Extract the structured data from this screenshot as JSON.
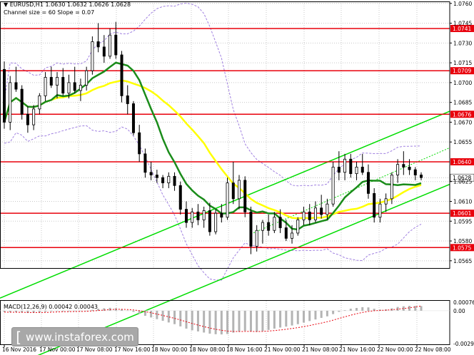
{
  "header": {
    "symbol_info": "EURUSD,H1  1.0630 1.0632 1.0626 1.0628",
    "indicator_info": "Channel size = 60 Slope = 0.07"
  },
  "macd_info": "MACD(12,26,9) 0.00042 0.00043",
  "watermark": "www.instaforex.com",
  "colors": {
    "level_line": "#e8000b",
    "level_label_bg": "#e8000b",
    "current_price_bg": "#ffffff",
    "ma_fast": "#1a8c1a",
    "ma_slow": "#ffff00",
    "channel_green": "#00dd00",
    "bollinger": "#a080e0",
    "candle_bull": "#ffffff",
    "candle_bear": "#000000",
    "macd_hist": "#b4b4b4",
    "macd_signal": "#e8000b",
    "grid": "#c8c8c8"
  },
  "chart_data": {
    "type": "candlestick",
    "symbol": "EURUSD",
    "timeframe": "H1",
    "y_ticks": [
      "1.0760",
      "1.0745",
      "1.0730",
      "1.0715",
      "1.0700",
      "1.0685",
      "1.0670",
      "1.0655",
      "1.0625",
      "1.0610",
      "1.0595",
      "1.0580",
      "1.0565"
    ],
    "ylim": [
      1.05595,
      1.07615
    ],
    "x_ticks": [
      "16 Nov 2016",
      "17 Nov 00:00",
      "17 Nov 08:00",
      "17 Nov 16:00",
      "18 Nov 00:00",
      "18 Nov 08:00",
      "18 Nov 16:00",
      "21 Nov 00:00",
      "21 Nov 08:00",
      "21 Nov 16:00",
      "22 Nov 00:00",
      "22 Nov 08:00"
    ],
    "levels": [
      {
        "value": 1.0741,
        "label": "1.0741"
      },
      {
        "value": 1.0709,
        "label": "1.0709"
      },
      {
        "value": 1.0676,
        "label": "1.0676"
      },
      {
        "value": 1.064,
        "label": "1.0640"
      },
      {
        "value": 1.0601,
        "label": "1.0601"
      },
      {
        "value": 1.0575,
        "label": "1.0575"
      }
    ],
    "current_price": {
      "value": 1.0628,
      "label": "1.0628"
    },
    "candles": [
      [
        1.071,
        1.0716,
        1.0665,
        1.067
      ],
      [
        1.067,
        1.0705,
        1.0664,
        1.07
      ],
      [
        1.07,
        1.0712,
        1.0693,
        1.0695
      ],
      [
        1.0695,
        1.0698,
        1.0672,
        1.0676
      ],
      [
        1.0676,
        1.0682,
        1.0662,
        1.0668
      ],
      [
        1.0668,
        1.0683,
        1.0664,
        1.068
      ],
      [
        1.068,
        1.0692,
        1.0676,
        1.069
      ],
      [
        1.069,
        1.0708,
        1.0686,
        1.0704
      ],
      [
        1.0704,
        1.0712,
        1.0696,
        1.0698
      ],
      [
        1.0698,
        1.0708,
        1.0688,
        1.0704
      ],
      [
        1.0704,
        1.0711,
        1.069,
        1.0692
      ],
      [
        1.0692,
        1.0706,
        1.0688,
        1.07
      ],
      [
        1.07,
        1.0712,
        1.0692,
        1.0694
      ],
      [
        1.0694,
        1.0703,
        1.0686,
        1.0698
      ],
      [
        1.0698,
        1.0712,
        1.0694,
        1.0709
      ],
      [
        1.0709,
        1.0735,
        1.0706,
        1.0731
      ],
      [
        1.0731,
        1.0745,
        1.0723,
        1.0727
      ],
      [
        1.0727,
        1.0736,
        1.0715,
        1.072
      ],
      [
        1.072,
        1.0741,
        1.0718,
        1.0736
      ],
      [
        1.0736,
        1.0746,
        1.0718,
        1.0721
      ],
      [
        1.0721,
        1.0724,
        1.0685,
        1.069
      ],
      [
        1.069,
        1.0698,
        1.0676,
        1.0684
      ],
      [
        1.0684,
        1.0686,
        1.066,
        1.0662
      ],
      [
        1.0662,
        1.0668,
        1.064,
        1.0646
      ],
      [
        1.0646,
        1.065,
        1.0628,
        1.0632
      ],
      [
        1.0632,
        1.064,
        1.0626,
        1.063
      ],
      [
        1.063,
        1.0634,
        1.0624,
        1.0628
      ],
      [
        1.0628,
        1.063,
        1.062,
        1.0624
      ],
      [
        1.0624,
        1.0632,
        1.062,
        1.0629
      ],
      [
        1.0629,
        1.0632,
        1.0618,
        1.0622
      ],
      [
        1.0622,
        1.0625,
        1.06,
        1.0604
      ],
      [
        1.0604,
        1.061,
        1.059,
        1.0594
      ],
      [
        1.0594,
        1.0605,
        1.059,
        1.0602
      ],
      [
        1.0602,
        1.0608,
        1.0592,
        1.0596
      ],
      [
        1.0596,
        1.0606,
        1.059,
        1.0603
      ],
      [
        1.0603,
        1.0609,
        1.0584,
        1.0587
      ],
      [
        1.0587,
        1.0604,
        1.0585,
        1.0601
      ],
      [
        1.0601,
        1.0608,
        1.0594,
        1.0598
      ],
      [
        1.0598,
        1.0628,
        1.0596,
        1.0624
      ],
      [
        1.0624,
        1.064,
        1.0608,
        1.0612
      ],
      [
        1.0612,
        1.063,
        1.0604,
        1.0626
      ],
      [
        1.0626,
        1.0629,
        1.0598,
        1.0602
      ],
      [
        1.0602,
        1.0606,
        1.057,
        1.0576
      ],
      [
        1.0576,
        1.0592,
        1.0572,
        1.0588
      ],
      [
        1.0588,
        1.0596,
        1.0578,
        1.0594
      ],
      [
        1.0594,
        1.06,
        1.0584,
        1.0588
      ],
      [
        1.0588,
        1.0602,
        1.0586,
        1.0598
      ],
      [
        1.0598,
        1.0604,
        1.0586,
        1.059
      ],
      [
        1.059,
        1.0596,
        1.058,
        1.0582
      ],
      [
        1.0582,
        1.0592,
        1.0578,
        1.0586
      ],
      [
        1.0586,
        1.0598,
        1.0584,
        1.0596
      ],
      [
        1.0596,
        1.0606,
        1.0592,
        1.0602
      ],
      [
        1.0602,
        1.0608,
        1.0592,
        1.0596
      ],
      [
        1.0596,
        1.061,
        1.0594,
        1.0605
      ],
      [
        1.0605,
        1.0615,
        1.0597,
        1.06
      ],
      [
        1.06,
        1.0612,
        1.0596,
        1.0608
      ],
      [
        1.0608,
        1.064,
        1.0606,
        1.0636
      ],
      [
        1.0636,
        1.0648,
        1.0626,
        1.0632
      ],
      [
        1.0632,
        1.0646,
        1.0626,
        1.0642
      ],
      [
        1.0642,
        1.0646,
        1.0628,
        1.0631
      ],
      [
        1.0631,
        1.064,
        1.0626,
        1.0636
      ],
      [
        1.0636,
        1.0646,
        1.063,
        1.0632
      ],
      [
        1.0632,
        1.0638,
        1.0612,
        1.0616
      ],
      [
        1.0616,
        1.062,
        1.0594,
        1.0598
      ],
      [
        1.0598,
        1.0612,
        1.0594,
        1.0608
      ],
      [
        1.0608,
        1.0616,
        1.0602,
        1.0612
      ],
      [
        1.0612,
        1.0632,
        1.0608,
        1.063
      ],
      [
        1.063,
        1.0642,
        1.0624,
        1.0638
      ],
      [
        1.0638,
        1.0648,
        1.063,
        1.0636
      ],
      [
        1.0636,
        1.0642,
        1.063,
        1.0634
      ],
      [
        1.0634,
        1.0636,
        1.0626,
        1.063
      ],
      [
        1.063,
        1.0632,
        1.0626,
        1.0628
      ]
    ],
    "macd": {
      "histogram": [
        -0.0001,
        -0.00014,
        -0.00012,
        -0.00016,
        -0.0002,
        -0.00018,
        -0.00015,
        -0.0001,
        -6e-05,
        -4e-05,
        -6e-05,
        -5e-05,
        -4e-05,
        -3e-05,
        0.0,
        8e-05,
        0.00018,
        0.00022,
        0.00026,
        0.00022,
        0.00012,
        2e-05,
        -0.0001,
        -0.00025,
        -0.00045,
        -0.0006,
        -0.00075,
        -0.0009,
        -0.00105,
        -0.0012,
        -0.0014,
        -0.0016,
        -0.00175,
        -0.00185,
        -0.00195,
        -0.00205,
        -0.0021,
        -0.00212,
        -0.00208,
        -0.00196,
        -0.00186,
        -0.0018,
        -0.00185,
        -0.00188,
        -0.00182,
        -0.00172,
        -0.0016,
        -0.0015,
        -0.00142,
        -0.00132,
        -0.0012,
        -0.00106,
        -0.00092,
        -0.00078,
        -0.00064,
        -0.0005,
        -0.0003,
        -0.0001,
        5e-05,
        0.00018,
        0.00025,
        0.00032,
        0.0003,
        0.00018,
        0.0001,
        0.00012,
        0.00022,
        0.00034,
        0.0004,
        0.00044,
        0.00043,
        0.00042
      ],
      "signal": [
        -0.00012,
        -0.00013,
        -0.00013,
        -0.00014,
        -0.00015,
        -0.00016,
        -0.00016,
        -0.00015,
        -0.00013,
        -0.00011,
        -9e-05,
        -8e-05,
        -7e-05,
        -6e-05,
        -5e-05,
        -2e-05,
        2e-05,
        6e-05,
        0.0001,
        0.00013,
        0.00013,
        0.00011,
        7e-05,
        1e-05,
        -8e-05,
        -0.00018,
        -0.0003,
        -0.00042,
        -0.00055,
        -0.00068,
        -0.00083,
        -0.00098,
        -0.00114,
        -0.00128,
        -0.00142,
        -0.00155,
        -0.00166,
        -0.00175,
        -0.00182,
        -0.00185,
        -0.00186,
        -0.00185,
        -0.00185,
        -0.00186,
        -0.00185,
        -0.00182,
        -0.00177,
        -0.00172,
        -0.00166,
        -0.00159,
        -0.00151,
        -0.00142,
        -0.00132,
        -0.00121,
        -0.0011,
        -0.00098,
        -0.00084,
        -0.00069,
        -0.00054,
        -0.0004,
        -0.00027,
        -0.00015,
        -6e-05,
        0.0,
        3e-05,
        5e-05,
        9e-05,
        0.00014,
        0.0002,
        0.00026,
        0.00034,
        0.00043
      ],
      "y_ticks": [
        "0.00076",
        "0.00",
        "-0.00294"
      ],
      "ylim": [
        -0.00294,
        0.00076
      ]
    }
  }
}
